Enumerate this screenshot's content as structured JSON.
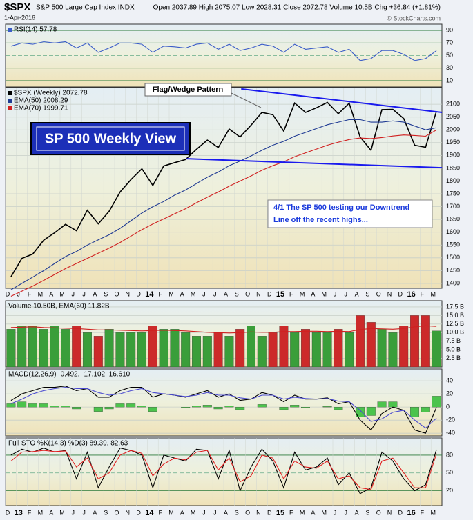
{
  "header": {
    "symbol": "$SPX",
    "name": "S&P 500 Large Cap Index INDX",
    "date": "1-Apr-2016",
    "quote": "Open 2037.89 High 2075.07 Low 2028.31 Close 2072.78 Volume 10.5B Chg +36.84 (+1.81%)",
    "credit": "© StockCharts.com"
  },
  "chart_data": [
    {
      "type": "line",
      "ylim": [
        0,
        100
      ],
      "yticks": [
        90,
        70,
        50,
        30,
        10
      ],
      "series": [
        {
          "name": "RSI(14) 57.78",
          "color": "#3a5cc8",
          "values": [
            65,
            70,
            68,
            72,
            70,
            72,
            62,
            70,
            55,
            62,
            70,
            70,
            68,
            55,
            65,
            64,
            62,
            68,
            70,
            60,
            68,
            58,
            62,
            68,
            65,
            55,
            68,
            60,
            62,
            64,
            55,
            60,
            42,
            45,
            58,
            58,
            52,
            42,
            45,
            57.78
          ]
        }
      ]
    },
    {
      "type": "line",
      "ylim": [
        1381,
        2165
      ],
      "yticks": [
        2100,
        2050,
        2000,
        1950,
        1900,
        1850,
        1800,
        1750,
        1700,
        1650,
        1600,
        1550,
        1500,
        1450,
        1400
      ],
      "categories": [
        "D",
        "J",
        "F",
        "M",
        "A",
        "M",
        "J",
        "J",
        "A",
        "S",
        "O",
        "N",
        "D",
        "14",
        "F",
        "M",
        "A",
        "M",
        "J",
        "J",
        "A",
        "S",
        "O",
        "N",
        "D",
        "15",
        "F",
        "M",
        "A",
        "M",
        "J",
        "J",
        "A",
        "S",
        "O",
        "N",
        "D",
        "16",
        "F",
        "M"
      ],
      "series": [
        {
          "name": "$SPX (Weekly) 2072.78",
          "color": "#000000",
          "values": [
            1426,
            1498,
            1515,
            1569,
            1598,
            1631,
            1606,
            1686,
            1633,
            1682,
            1757,
            1806,
            1848,
            1783,
            1859,
            1872,
            1884,
            1924,
            1960,
            1931,
            2003,
            1972,
            2018,
            2068,
            2059,
            1995,
            2105,
            2068,
            2086,
            2107,
            2063,
            2104,
            1972,
            1920,
            2079,
            2080,
            2044,
            1940,
            1932,
            2072.78
          ]
        },
        {
          "name": "EMA(50) 2008.29",
          "color": "#1f3a93",
          "values": [
            1375,
            1400,
            1425,
            1450,
            1478,
            1505,
            1525,
            1550,
            1570,
            1590,
            1615,
            1645,
            1675,
            1700,
            1720,
            1745,
            1765,
            1790,
            1815,
            1835,
            1860,
            1878,
            1898,
            1920,
            1940,
            1955,
            1975,
            1990,
            2005,
            2020,
            2030,
            2040,
            2040,
            2030,
            2030,
            2035,
            2030,
            2015,
            2000,
            2008.29
          ]
        },
        {
          "name": "EMA(70) 1999.71",
          "color": "#d02020",
          "values": [
            1350,
            1370,
            1390,
            1412,
            1435,
            1458,
            1478,
            1498,
            1518,
            1538,
            1560,
            1585,
            1610,
            1632,
            1652,
            1672,
            1692,
            1715,
            1737,
            1757,
            1780,
            1800,
            1820,
            1842,
            1860,
            1875,
            1895,
            1910,
            1925,
            1940,
            1952,
            1962,
            1968,
            1966,
            1970,
            1976,
            1980,
            1978,
            1975,
            1999.71
          ]
        }
      ],
      "trendlines": [
        {
          "from_index": 23,
          "from_value": 2160,
          "to_index": 39,
          "to_value": 2068,
          "color": "#1a1aee"
        },
        {
          "from_index": 18,
          "from_value": 1887,
          "to_index": 39,
          "to_value": 1852,
          "color": "#1a1aee"
        }
      ],
      "annotations": {
        "pattern": "Flag/Wedge Pattern",
        "view": "SP 500 Weekly View",
        "note": [
          "4/1  The SP 500 testing our Downtrend",
          "Line off the recent highs..."
        ]
      }
    },
    {
      "type": "bar",
      "legend": "Volume 10.50B, EMA(60) 11.82B",
      "ylim": [
        0,
        19.3
      ],
      "yticks": [
        {
          "value": 17.5,
          "label": "17.5 B"
        },
        {
          "value": 15,
          "label": "15.0 B"
        },
        {
          "value": 12.5,
          "label": "12.5 B"
        },
        {
          "value": 10,
          "label": "10.0 B"
        },
        {
          "value": 7.5,
          "label": "7.5 B"
        },
        {
          "value": 5,
          "label": "5.0 B"
        },
        {
          "value": 2.5,
          "label": "2.5 B"
        }
      ],
      "series": [
        {
          "style": "bar",
          "color": "#3a9e3a",
          "down_color": "#cc2a2a",
          "values": [
            11,
            12,
            12,
            11,
            12,
            11,
            12,
            10,
            9,
            11,
            10,
            10,
            10,
            12,
            11,
            11,
            10,
            9,
            9,
            10,
            9,
            11,
            12,
            9,
            10,
            12,
            10,
            11,
            10,
            10,
            11,
            10,
            15,
            13,
            11,
            10,
            12,
            15,
            15,
            10.5
          ]
        },
        {
          "style": "line",
          "color": "#d02020",
          "values": [
            11.5,
            11.6,
            11.7,
            11.5,
            11.4,
            11.3,
            11.2,
            11.0,
            10.8,
            10.8,
            10.7,
            10.6,
            10.5,
            10.6,
            10.7,
            10.6,
            10.5,
            10.3,
            10.1,
            10.0,
            9.9,
            10.0,
            10.2,
            10.1,
            10.1,
            10.3,
            10.3,
            10.4,
            10.4,
            10.3,
            10.4,
            10.3,
            10.9,
            11.2,
            11.1,
            11.0,
            11.2,
            11.7,
            12.0,
            11.82
          ]
        }
      ]
    },
    {
      "type": "line",
      "legend": "MACD(12,26,9) -0.492, -17.102, 16.610",
      "ylim": [
        -44,
        58
      ],
      "yticks": [
        40,
        20,
        0,
        -20,
        -40
      ],
      "series": [
        {
          "style": "histogram",
          "color": "#4cc34c",
          "values": [
            5,
            8,
            5,
            5,
            2,
            2,
            -3,
            0,
            -7,
            -3,
            5,
            5,
            2,
            -7,
            0,
            0,
            -1,
            2,
            3,
            -3,
            2,
            -4,
            0,
            4,
            0,
            -4,
            3,
            -1,
            0,
            1,
            -4,
            0,
            -15,
            -13,
            8,
            8,
            0,
            -15,
            -8,
            16.61
          ]
        },
        {
          "style": "line",
          "color": "#000000",
          "values": [
            10,
            20,
            25,
            30,
            30,
            32,
            25,
            28,
            15,
            15,
            25,
            30,
            30,
            15,
            20,
            18,
            15,
            20,
            25,
            15,
            20,
            10,
            12,
            22,
            18,
            8,
            18,
            12,
            12,
            14,
            5,
            8,
            -20,
            -35,
            -10,
            0,
            -5,
            -35,
            -40,
            -0.492
          ]
        },
        {
          "style": "line",
          "color": "#4a4ad0",
          "values": [
            5,
            12,
            20,
            25,
            28,
            30,
            28,
            28,
            22,
            18,
            20,
            25,
            28,
            22,
            20,
            18,
            16,
            18,
            22,
            18,
            18,
            14,
            12,
            18,
            18,
            12,
            15,
            13,
            12,
            13,
            9,
            8,
            -5,
            -22,
            -18,
            -8,
            -5,
            -20,
            -32,
            -17.102
          ]
        }
      ]
    },
    {
      "type": "line",
      "legend": "Full STO %K(14,3) %D(3) 89.39, 82.63",
      "ylim": [
        -5,
        109
      ],
      "yticks": [
        80,
        50,
        20
      ],
      "categories": [
        "D",
        "13",
        "F",
        "M",
        "A",
        "M",
        "J",
        "J",
        "A",
        "S",
        "O",
        "N",
        "D",
        "14",
        "F",
        "M",
        "A",
        "M",
        "J",
        "J",
        "A",
        "S",
        "O",
        "N",
        "D",
        "15",
        "F",
        "M",
        "A",
        "M",
        "J",
        "J",
        "A",
        "S",
        "O",
        "N",
        "D",
        "16",
        "F",
        "M"
      ],
      "series": [
        {
          "style": "line",
          "color": "#000000",
          "values": [
            80,
            90,
            85,
            92,
            85,
            88,
            40,
            85,
            25,
            60,
            92,
            88,
            80,
            25,
            80,
            75,
            70,
            90,
            88,
            40,
            88,
            20,
            60,
            90,
            70,
            25,
            85,
            55,
            60,
            75,
            30,
            50,
            15,
            25,
            85,
            70,
            40,
            20,
            30,
            89.39
          ]
        },
        {
          "style": "line",
          "color": "#e02020",
          "values": [
            70,
            85,
            86,
            88,
            86,
            87,
            60,
            75,
            40,
            50,
            80,
            88,
            83,
            45,
            65,
            75,
            72,
            85,
            88,
            55,
            75,
            35,
            45,
            80,
            75,
            40,
            70,
            60,
            58,
            70,
            40,
            45,
            25,
            22,
            70,
            75,
            50,
            25,
            25,
            82.63
          ]
        }
      ]
    }
  ]
}
